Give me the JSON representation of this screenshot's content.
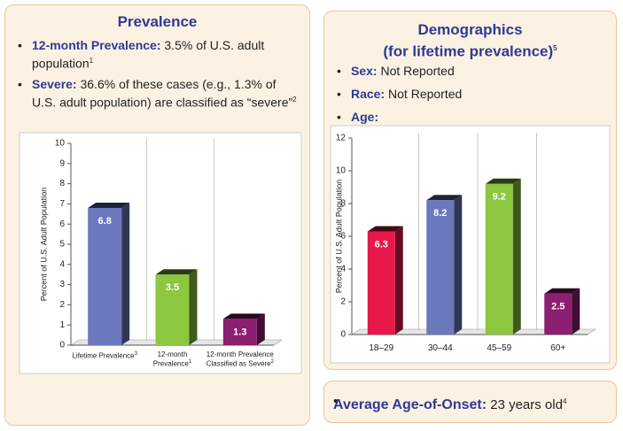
{
  "left_panel": {
    "title": "Prevalence",
    "bullets": [
      {
        "label": "12-month Prevalence:",
        "text": "3.5% of U.S. adult population",
        "sup": "1"
      },
      {
        "label": "Severe:",
        "text": "36.6% of these cases (e.g., 1.3% of U.S. adult population) are classified as “severe”",
        "sup": "2"
      }
    ]
  },
  "right_panel": {
    "title": "Demographics",
    "subtitle": "(for lifetime prevalence)",
    "subtitle_sup": "5",
    "bullets": [
      {
        "label": "Sex:",
        "text": "Not Reported"
      },
      {
        "label": "Race:",
        "text": "Not Reported"
      },
      {
        "label": "Age:"
      }
    ]
  },
  "onset_box": {
    "label": "Average Age-of-Onset:",
    "text": "23 years old",
    "sup": "4"
  },
  "chart_data": [
    {
      "type": "bar3d",
      "y_label": "Percent of U.S. Adult Population",
      "categories": [
        "Lifetime Prevalence",
        "12-month Prevalence",
        "12-month Prevalence Classified as Severe"
      ],
      "category_sups": [
        "3",
        "1",
        "2"
      ],
      "values": [
        6.8,
        3.5,
        1.3
      ],
      "colors": [
        "#6b78bd",
        "#8dc63f",
        "#8c1f6f"
      ],
      "ylim": [
        0,
        10
      ],
      "yticks": [
        0,
        1,
        2,
        3,
        4,
        5,
        6,
        7,
        8,
        9,
        10
      ]
    },
    {
      "type": "bar3d",
      "y_label": "Percent of U.S. Adult Population",
      "categories": [
        "18–29",
        "30–44",
        "45–59",
        "60+"
      ],
      "values": [
        6.3,
        8.2,
        9.2,
        2.5
      ],
      "colors": [
        "#e8194a",
        "#6b78bd",
        "#8dc63f",
        "#8c1f6f"
      ],
      "ylim": [
        0,
        12
      ],
      "yticks": [
        0,
        2,
        4,
        6,
        8,
        10,
        12
      ]
    }
  ]
}
